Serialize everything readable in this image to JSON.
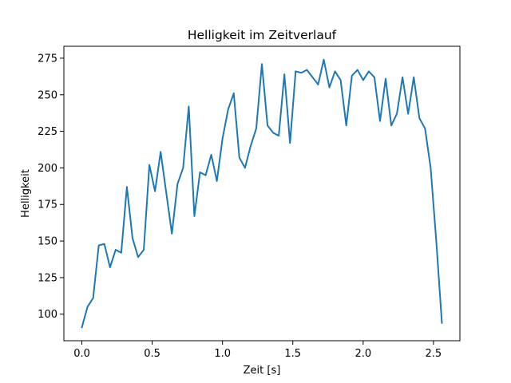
{
  "chart_data": {
    "type": "line",
    "title": "Helligkeit im Zeitverlauf",
    "xlabel": "Zeit [s]",
    "ylabel": "Helligkeit",
    "xlim": [
      -0.128,
      2.688
    ],
    "ylim": [
      81.85,
      283.15
    ],
    "xticks": [
      0.0,
      0.5,
      1.0,
      1.5,
      2.0,
      2.5
    ],
    "xtick_labels": [
      "0.0",
      "0.5",
      "1.0",
      "1.5",
      "2.0",
      "2.5"
    ],
    "yticks": [
      100,
      125,
      150,
      175,
      200,
      225,
      250,
      275
    ],
    "ytick_labels": [
      "100",
      "125",
      "150",
      "175",
      "200",
      "225",
      "250",
      "275"
    ],
    "grid": false,
    "legend": "none",
    "line_color": "#1f77b4",
    "series": [
      {
        "x": [
          0.0,
          0.04,
          0.08,
          0.12,
          0.16,
          0.2,
          0.24,
          0.28,
          0.32,
          0.36,
          0.4,
          0.44,
          0.48,
          0.52,
          0.56,
          0.6,
          0.64,
          0.68,
          0.72,
          0.76,
          0.8,
          0.84,
          0.88,
          0.92,
          0.96,
          1.0,
          1.04,
          1.08,
          1.12,
          1.16,
          1.2,
          1.24,
          1.28,
          1.32,
          1.36,
          1.4,
          1.44,
          1.48,
          1.52,
          1.56,
          1.6,
          1.64,
          1.68,
          1.72,
          1.76,
          1.8,
          1.84,
          1.88,
          1.92,
          1.96,
          2.0,
          2.04,
          2.08,
          2.12,
          2.16,
          2.2,
          2.24,
          2.28,
          2.32,
          2.36,
          2.4,
          2.44,
          2.48,
          2.52,
          2.56
        ],
        "y": [
          91,
          105,
          111,
          147,
          148,
          132,
          144,
          142,
          187,
          152,
          139,
          144,
          202,
          184,
          211,
          183,
          155,
          189,
          200,
          242,
          167,
          197,
          195,
          209,
          191,
          220,
          240,
          251,
          207,
          200,
          215,
          227,
          271,
          229,
          224,
          222,
          264,
          217,
          266,
          265,
          267,
          262,
          257,
          274,
          255,
          266,
          260,
          229,
          263,
          267,
          260,
          266,
          262,
          232,
          261,
          229,
          237,
          262,
          237,
          262,
          234,
          227,
          200,
          150,
          94
        ]
      }
    ]
  }
}
